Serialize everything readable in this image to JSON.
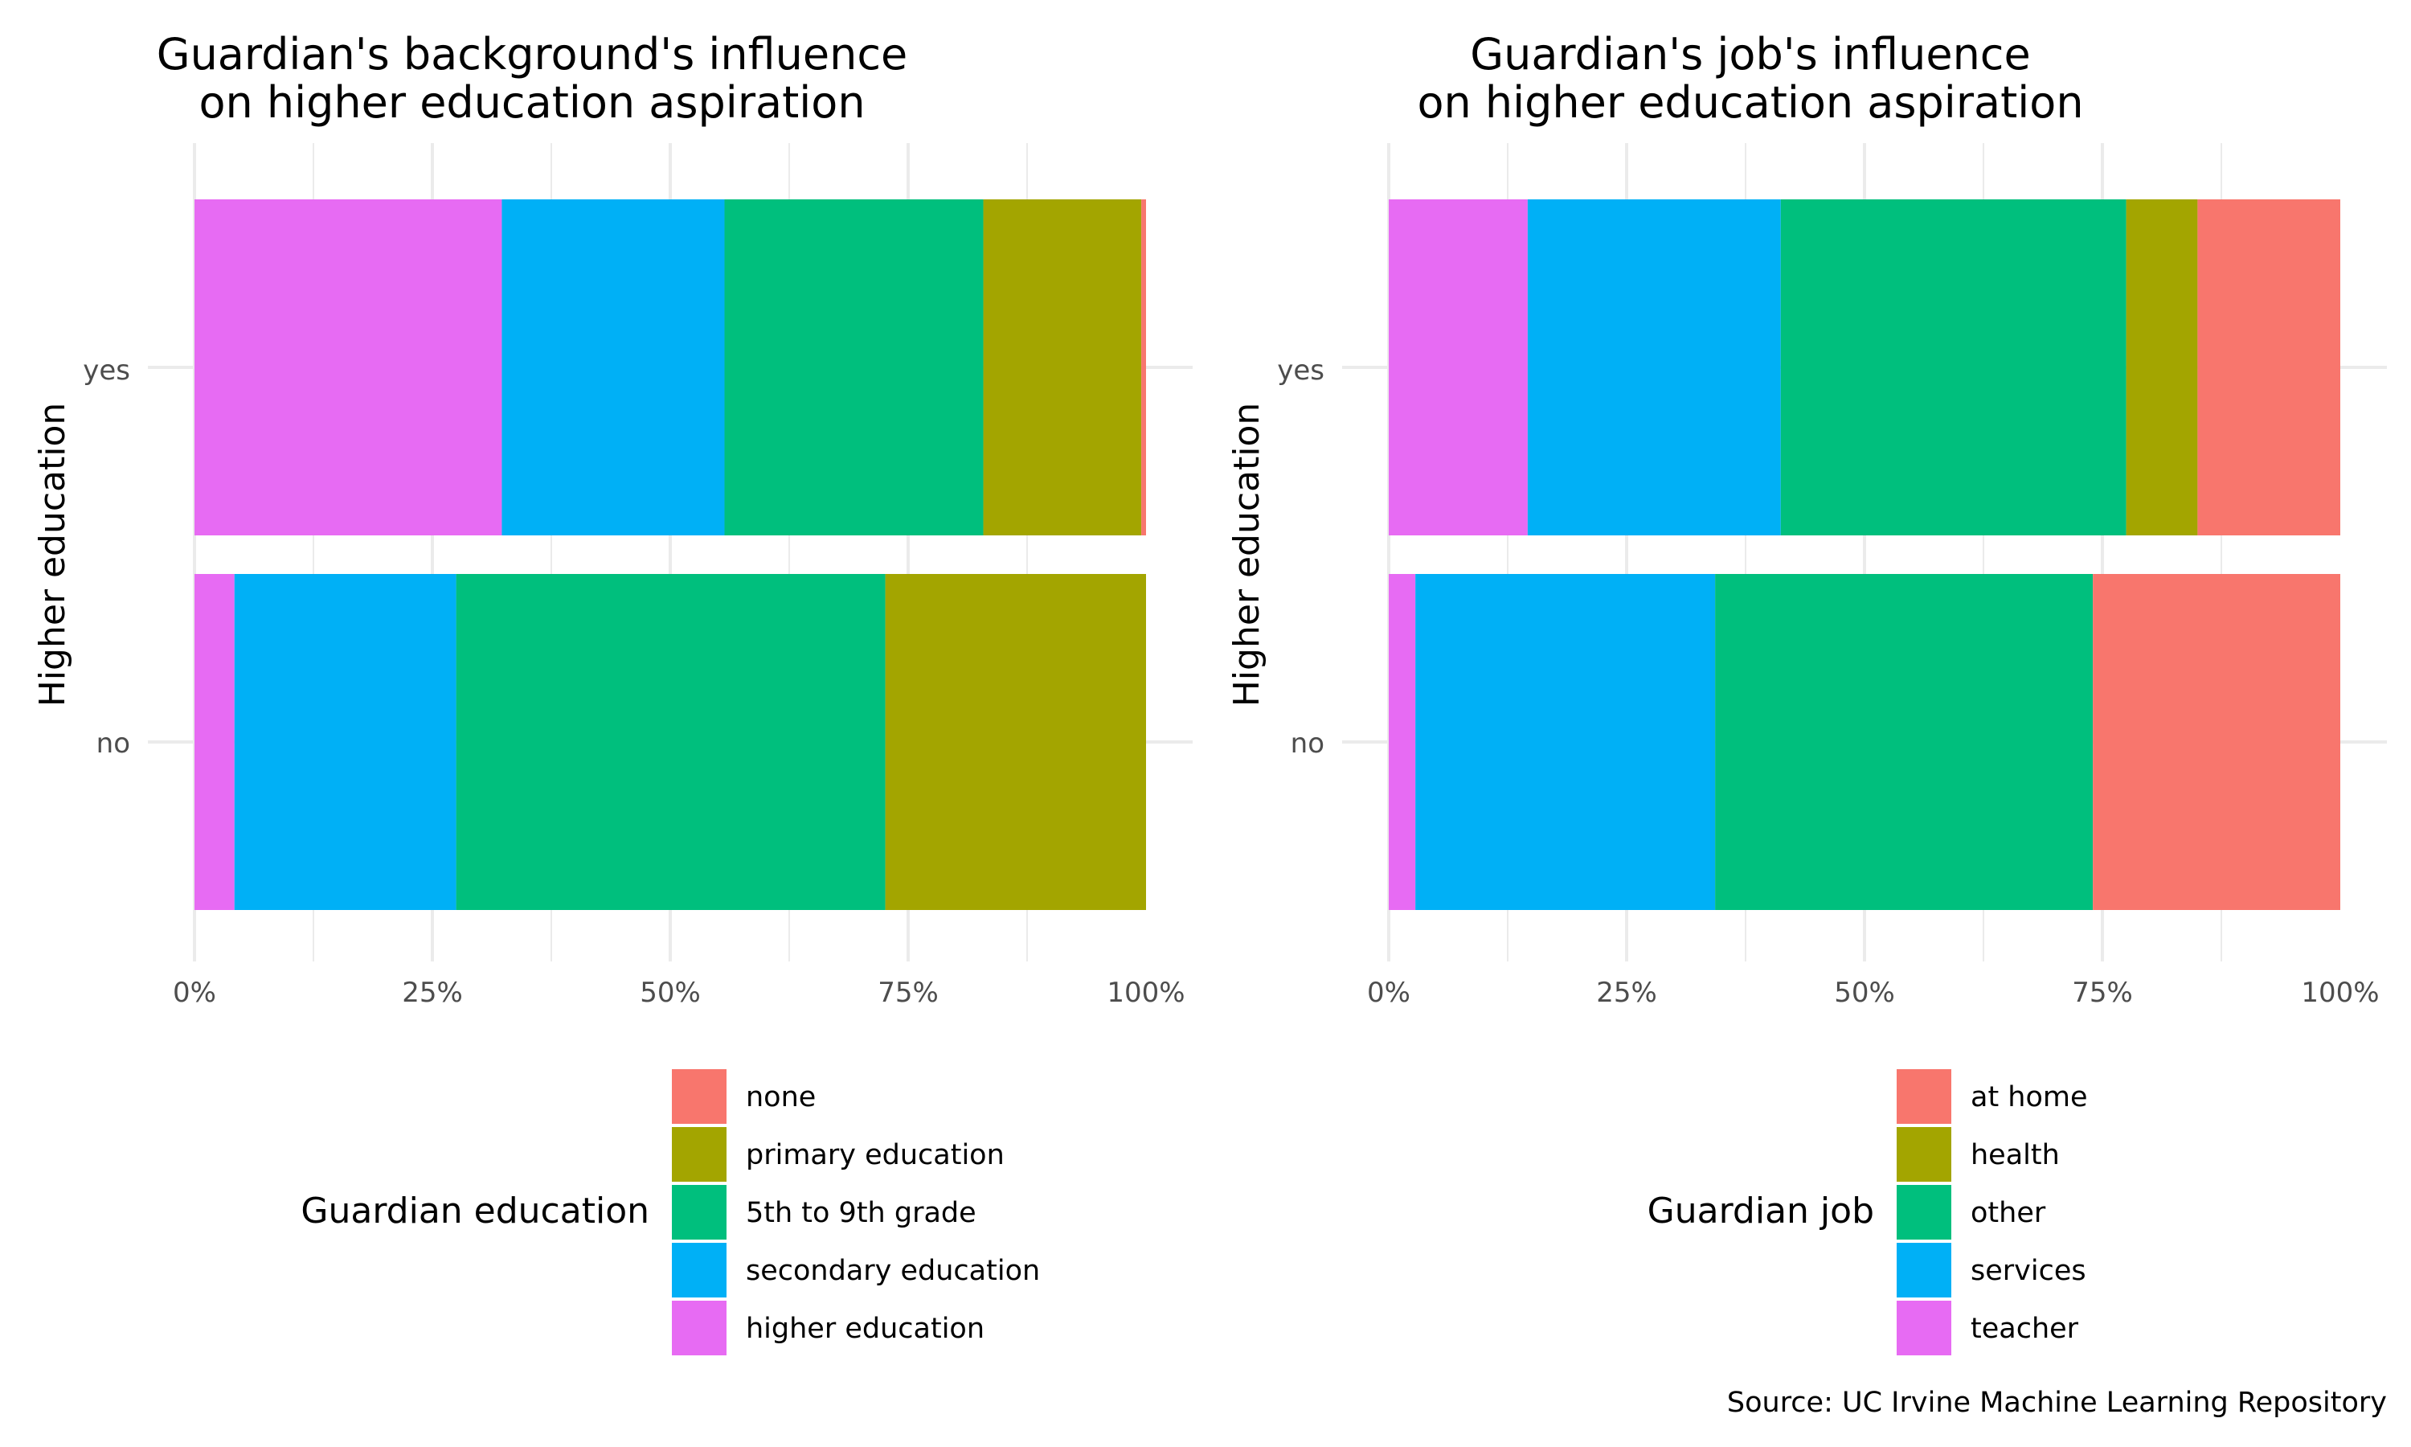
{
  "caption": "Source: UC Irvine Machine Learning Repository",
  "chart_data": [
    {
      "type": "bar",
      "orientation": "horizontal",
      "stacked": true,
      "normalized": true,
      "title_lines": [
        "Guardian's background's influence",
        "on higher education aspiration"
      ],
      "ylabel": "Higher education",
      "xlabel": "",
      "categories": [
        "yes",
        "no"
      ],
      "xlim": [
        0,
        100
      ],
      "x_ticks": [
        "0%",
        "25%",
        "50%",
        "75%",
        "100%"
      ],
      "grid": true,
      "legend": {
        "title": "Guardian education",
        "position": "bottom",
        "entries": [
          {
            "name": "none",
            "color": "#F8766D"
          },
          {
            "name": "primary education",
            "color": "#A3A500"
          },
          {
            "name": "5th to 9th grade",
            "color": "#00BF7D"
          },
          {
            "name": "secondary education",
            "color": "#00B0F6"
          },
          {
            "name": "higher education",
            "color": "#E76BF3"
          }
        ]
      },
      "stack_order": [
        "higher education",
        "secondary education",
        "5th to 9th grade",
        "primary education",
        "none"
      ],
      "series": [
        {
          "name": "none",
          "color": "#F8766D",
          "values": [
            0.5,
            0
          ]
        },
        {
          "name": "primary education",
          "color": "#A3A500",
          "values": [
            16.6,
            27.4
          ]
        },
        {
          "name": "5th to 9th grade",
          "color": "#00BF7D",
          "values": [
            27.2,
            45.1
          ]
        },
        {
          "name": "secondary education",
          "color": "#00B0F6",
          "values": [
            23.4,
            23.3
          ]
        },
        {
          "name": "higher education",
          "color": "#E76BF3",
          "values": [
            32.3,
            4.2
          ]
        }
      ]
    },
    {
      "type": "bar",
      "orientation": "horizontal",
      "stacked": true,
      "normalized": true,
      "title_lines": [
        "Guardian's job's influence",
        "on higher education aspiration"
      ],
      "ylabel": "Higher education",
      "xlabel": "",
      "categories": [
        "yes",
        "no"
      ],
      "xlim": [
        0,
        100
      ],
      "x_ticks": [
        "0%",
        "25%",
        "50%",
        "75%",
        "100%"
      ],
      "grid": true,
      "legend": {
        "title": "Guardian job",
        "position": "bottom",
        "entries": [
          {
            "name": "at home",
            "color": "#F8766D"
          },
          {
            "name": "health",
            "color": "#A3A500"
          },
          {
            "name": "other",
            "color": "#00BF7D"
          },
          {
            "name": "services",
            "color": "#00B0F6"
          },
          {
            "name": "teacher",
            "color": "#E76BF3"
          }
        ]
      },
      "stack_order": [
        "teacher",
        "services",
        "other",
        "health",
        "at home"
      ],
      "series": [
        {
          "name": "at home",
          "color": "#F8766D",
          "values": [
            15.0,
            26.0
          ]
        },
        {
          "name": "health",
          "color": "#A3A500",
          "values": [
            7.5,
            0
          ]
        },
        {
          "name": "other",
          "color": "#00BF7D",
          "values": [
            36.3,
            39.7
          ]
        },
        {
          "name": "services",
          "color": "#00B0F6",
          "values": [
            26.6,
            31.5
          ]
        },
        {
          "name": "teacher",
          "color": "#E76BF3",
          "values": [
            14.6,
            2.8
          ]
        }
      ]
    }
  ]
}
